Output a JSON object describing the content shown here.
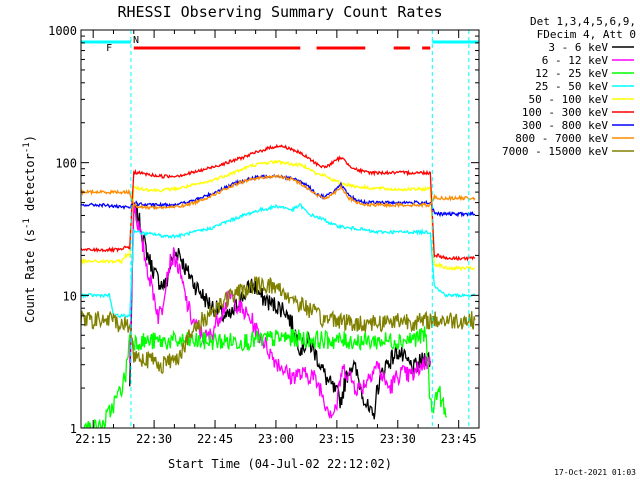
{
  "window": {
    "title": "RHESSI Observing Summary Count Rates",
    "footer_stamp": "17-Oct-2021 01:03"
  },
  "chart_data": {
    "type": "line",
    "title": "RHESSI Observing Summary Count Rates",
    "xlabel": "Start Time (04-Jul-02 22:12:02)",
    "ylabel": "Count Rate (s",
    "ylabel_sup1": "-1",
    "ylabel_mid": " detector",
    "ylabel_sup2": "-1",
    "ylabel_end": ")",
    "y_scale": "log",
    "ylim": [
      1,
      1000
    ],
    "xlim_minutes": [
      0,
      98
    ],
    "x_ticks": [
      {
        "minute": 3,
        "label": "22:15"
      },
      {
        "minute": 18,
        "label": "22:30"
      },
      {
        "minute": 33,
        "label": "22:45"
      },
      {
        "minute": 48,
        "label": "23:00"
      },
      {
        "minute": 63,
        "label": "23:15"
      },
      {
        "minute": 78,
        "label": "23:30"
      },
      {
        "minute": 93,
        "label": "23:45"
      }
    ],
    "y_ticks": [
      {
        "value": 1,
        "label": "1"
      },
      {
        "value": 10,
        "label": "10"
      },
      {
        "value": 100,
        "label": "100"
      },
      {
        "value": 1000,
        "label": "1000"
      }
    ],
    "legend": {
      "header": [
        "Det 1,3,4,5,6,9,",
        "FDecim 4, Att 0"
      ],
      "placement": "right"
    },
    "night_boundaries_minutes": [
      12.3,
      86.5,
      95.5
    ],
    "annotation_N": "N",
    "annotation_F": "F",
    "flare_flag_segments_minutes": [
      [
        13,
        54
      ],
      [
        58,
        70
      ],
      [
        77,
        81
      ],
      [
        84,
        86
      ]
    ],
    "series": [
      {
        "name": "3 - 6 keV",
        "color": "#000000",
        "x": [
          12,
          13,
          14,
          15,
          16,
          17,
          18,
          19,
          20,
          21,
          22,
          23,
          24,
          25,
          26,
          27,
          28,
          29,
          30,
          31,
          32,
          33,
          34,
          35,
          36,
          37,
          38,
          39,
          40,
          41,
          42,
          43,
          44,
          45,
          46,
          47,
          48,
          49,
          50,
          51,
          52,
          53,
          54,
          55,
          56,
          57,
          58,
          59,
          60,
          61,
          62,
          63,
          64,
          65,
          66,
          67,
          68,
          69,
          70,
          71,
          72,
          73,
          74,
          75,
          76,
          77,
          78,
          79,
          80,
          81,
          82,
          83,
          84,
          85,
          86
        ],
        "y": [
          2,
          45,
          40,
          30,
          22,
          18,
          15,
          13,
          12,
          12,
          17,
          20,
          22,
          18,
          15,
          14,
          12,
          11,
          10,
          9,
          8.5,
          8,
          7.5,
          7,
          6.8,
          7,
          8,
          9,
          10,
          11,
          12,
          11.5,
          10,
          9.5,
          9,
          8.5,
          8.5,
          8,
          8,
          7,
          6,
          5,
          4,
          4.2,
          4.5,
          4,
          3.5,
          3,
          2.5,
          2.2,
          2,
          1.8,
          1.6,
          2.2,
          2.8,
          3,
          2.5,
          2,
          1.6,
          1.3,
          1.2,
          2,
          2.5,
          3,
          3.2,
          3.5,
          3.8,
          3.5,
          3.2,
          3,
          2.8,
          3,
          3.2,
          3.5,
          3.2
        ]
      },
      {
        "name": "6 - 12 keV",
        "color": "#ff00ff",
        "x": [
          12,
          13,
          14,
          15,
          16,
          17,
          18,
          19,
          20,
          21,
          22,
          23,
          24,
          25,
          26,
          27,
          28,
          29,
          30,
          31,
          32,
          33,
          34,
          35,
          36,
          37,
          38,
          39,
          40,
          41,
          42,
          43,
          44,
          45,
          46,
          47,
          48,
          49,
          50,
          51,
          52,
          53,
          54,
          55,
          56,
          57,
          58,
          59,
          60,
          61,
          62,
          63,
          64,
          65,
          66,
          67,
          68,
          69,
          70,
          71,
          72,
          73,
          74,
          75,
          76,
          77,
          78,
          79,
          80,
          81,
          82,
          83,
          84,
          85,
          86
        ],
        "y": [
          3,
          50,
          35,
          25,
          18,
          13,
          10,
          7,
          8,
          14,
          18,
          20,
          16,
          12,
          9,
          7,
          6,
          5.5,
          5,
          4.8,
          5,
          6,
          7,
          8,
          9,
          10,
          9,
          8,
          7.5,
          7,
          6.5,
          5.5,
          5,
          4.5,
          4,
          3.5,
          3.2,
          3,
          2.8,
          2.5,
          2.4,
          2.6,
          2.5,
          2.5,
          2.5,
          2.5,
          2.2,
          2,
          1.6,
          1.4,
          1.3,
          1.5,
          2.5,
          2.8,
          2.5,
          2.2,
          2,
          2,
          2.2,
          2.5,
          2.8,
          3,
          2.5,
          2.2,
          2,
          2.2,
          2.5,
          2.6,
          2.5,
          2.5,
          2.5,
          2.8,
          3,
          3.2,
          3
        ]
      },
      {
        "name": "12 - 25 keV",
        "color": "#00ff00",
        "x": [
          0,
          5,
          8,
          10,
          11,
          12,
          13,
          20,
          30,
          40,
          50,
          60,
          70,
          80,
          85,
          86,
          87,
          88,
          89,
          90
        ],
        "y": [
          1,
          1,
          1.5,
          2,
          2.5,
          5,
          4.5,
          4.5,
          4.5,
          4.5,
          4.8,
          4.6,
          4.5,
          4.6,
          5,
          1.5,
          1.5,
          2,
          1.5,
          1.2
        ]
      },
      {
        "name": "25 - 50 keV",
        "color": "#00ffff",
        "x": [
          0,
          2,
          4,
          5,
          6,
          7,
          8,
          10,
          11,
          12,
          13,
          14,
          16,
          18,
          20,
          22,
          24,
          26,
          28,
          30,
          32,
          34,
          36,
          38,
          40,
          42,
          44,
          46,
          48,
          50,
          52,
          54,
          56,
          58,
          60,
          62,
          64,
          66,
          68,
          70,
          72,
          74,
          76,
          78,
          80,
          82,
          84,
          86,
          87,
          88,
          90,
          92,
          95,
          96,
          97
        ],
        "y": [
          10,
          10,
          10,
          10,
          10,
          10,
          7,
          7,
          7,
          7,
          31,
          30,
          29,
          29,
          28,
          28,
          28,
          29,
          30,
          31,
          32,
          34,
          36,
          38,
          40,
          42,
          44,
          45,
          47,
          46,
          44,
          48,
          41,
          39,
          37,
          34,
          33,
          32,
          32,
          31,
          30,
          30,
          30,
          30,
          30,
          30,
          30,
          30,
          12,
          11,
          10,
          10,
          10,
          10,
          10
        ]
      },
      {
        "name": "50 - 100 keV",
        "color": "#ffff00",
        "x": [
          0,
          5,
          8,
          10,
          11,
          12,
          13,
          14,
          16,
          18,
          20,
          22,
          24,
          26,
          28,
          30,
          32,
          34,
          36,
          38,
          40,
          42,
          44,
          46,
          48,
          50,
          52,
          54,
          56,
          58,
          60,
          62,
          64,
          66,
          68,
          70,
          72,
          74,
          76,
          78,
          80,
          82,
          84,
          86,
          87,
          88,
          90,
          92,
          95,
          96,
          97
        ],
        "y": [
          18,
          18,
          18,
          18,
          20,
          20,
          65,
          64,
          63,
          62,
          62,
          63,
          64,
          66,
          68,
          70,
          73,
          77,
          81,
          85,
          90,
          95,
          98,
          100,
          102,
          100,
          97,
          96,
          92,
          82,
          80,
          74,
          70,
          68,
          66,
          65,
          64,
          64,
          63,
          63,
          63,
          63,
          63,
          64,
          17,
          17,
          16,
          16,
          16,
          16,
          16
        ]
      },
      {
        "name": "100 - 300 keV",
        "color": "#ff0000",
        "x": [
          0,
          5,
          8,
          10,
          11,
          12,
          13,
          14,
          16,
          18,
          20,
          22,
          24,
          26,
          28,
          30,
          32,
          34,
          36,
          38,
          40,
          42,
          44,
          46,
          48,
          50,
          52,
          54,
          56,
          58,
          60,
          62,
          64,
          66,
          68,
          70,
          72,
          74,
          76,
          78,
          80,
          82,
          84,
          86,
          87,
          88,
          90,
          92,
          95,
          96,
          97
        ],
        "y": [
          22,
          22,
          22,
          22,
          23,
          23,
          85,
          84,
          82,
          80,
          79,
          79,
          80,
          82,
          85,
          88,
          92,
          96,
          100,
          105,
          110,
          116,
          122,
          128,
          133,
          132,
          126,
          118,
          108,
          98,
          92,
          100,
          110,
          96,
          88,
          85,
          84,
          84,
          84,
          84,
          84,
          84,
          84,
          84,
          20,
          20,
          19,
          19,
          19,
          19,
          19
        ]
      },
      {
        "name": "300 - 800 keV",
        "color": "#0000ff",
        "x": [
          0,
          5,
          8,
          10,
          11,
          12,
          13,
          14,
          16,
          18,
          20,
          22,
          24,
          26,
          28,
          30,
          32,
          34,
          36,
          38,
          40,
          42,
          44,
          46,
          48,
          50,
          52,
          54,
          56,
          58,
          60,
          62,
          64,
          66,
          68,
          70,
          72,
          74,
          76,
          78,
          80,
          82,
          84,
          86,
          87,
          88,
          90,
          92,
          95,
          96,
          97
        ],
        "y": [
          48,
          48,
          47,
          46,
          46,
          46,
          50,
          49,
          48,
          48,
          48,
          48,
          49,
          50,
          52,
          55,
          58,
          62,
          66,
          70,
          73,
          76,
          78,
          79,
          80,
          78,
          76,
          72,
          66,
          58,
          55,
          60,
          68,
          56,
          52,
          50,
          50,
          50,
          50,
          50,
          50,
          50,
          50,
          50,
          42,
          41,
          41,
          41,
          41,
          41,
          41
        ]
      },
      {
        "name": "800 - 7000 keV",
        "color": "#ff8c00",
        "x": [
          0,
          5,
          8,
          10,
          11,
          12,
          13,
          14,
          16,
          18,
          20,
          22,
          24,
          26,
          28,
          30,
          32,
          34,
          36,
          38,
          40,
          42,
          44,
          46,
          48,
          50,
          52,
          54,
          56,
          58,
          60,
          62,
          64,
          66,
          68,
          70,
          72,
          74,
          76,
          78,
          80,
          82,
          84,
          86,
          87,
          88,
          90,
          92,
          95,
          96,
          97
        ],
        "y": [
          60,
          60,
          60,
          60,
          60,
          60,
          48,
          47,
          46,
          46,
          46,
          46,
          47,
          48,
          50,
          53,
          56,
          60,
          64,
          68,
          72,
          75,
          77,
          78,
          79,
          77,
          75,
          70,
          64,
          57,
          54,
          58,
          66,
          54,
          50,
          48,
          48,
          48,
          48,
          48,
          48,
          48,
          48,
          48,
          55,
          54,
          54,
          54,
          54,
          54,
          54
        ]
      },
      {
        "name": "7000 - 15000 keV",
        "color": "#808000",
        "x": [
          0,
          5,
          8,
          10,
          11,
          12,
          13,
          14,
          16,
          18,
          20,
          22,
          24,
          26,
          28,
          30,
          32,
          34,
          36,
          38,
          40,
          42,
          44,
          46,
          48,
          50,
          52,
          54,
          56,
          58,
          60,
          62,
          64,
          66,
          68,
          70,
          72,
          74,
          76,
          78,
          80,
          82,
          84,
          86,
          87,
          88,
          90,
          92,
          95,
          96,
          97
        ],
        "y": [
          6.5,
          6.5,
          6.5,
          6,
          6,
          6,
          3.5,
          3.5,
          3.3,
          3.2,
          3,
          3.2,
          3.5,
          4.5,
          5.5,
          6.5,
          7.5,
          8.5,
          9.5,
          10,
          11,
          11.5,
          12,
          12,
          11.5,
          10.5,
          9.5,
          8.5,
          8,
          7,
          6.5,
          6.8,
          6.5,
          6.2,
          6,
          6.2,
          6.3,
          6.2,
          6.4,
          6.5,
          6.5,
          6.3,
          6.3,
          6.5,
          6.5,
          6.5,
          6.5,
          6.5,
          6.5,
          6.5,
          6.5
        ]
      }
    ]
  }
}
